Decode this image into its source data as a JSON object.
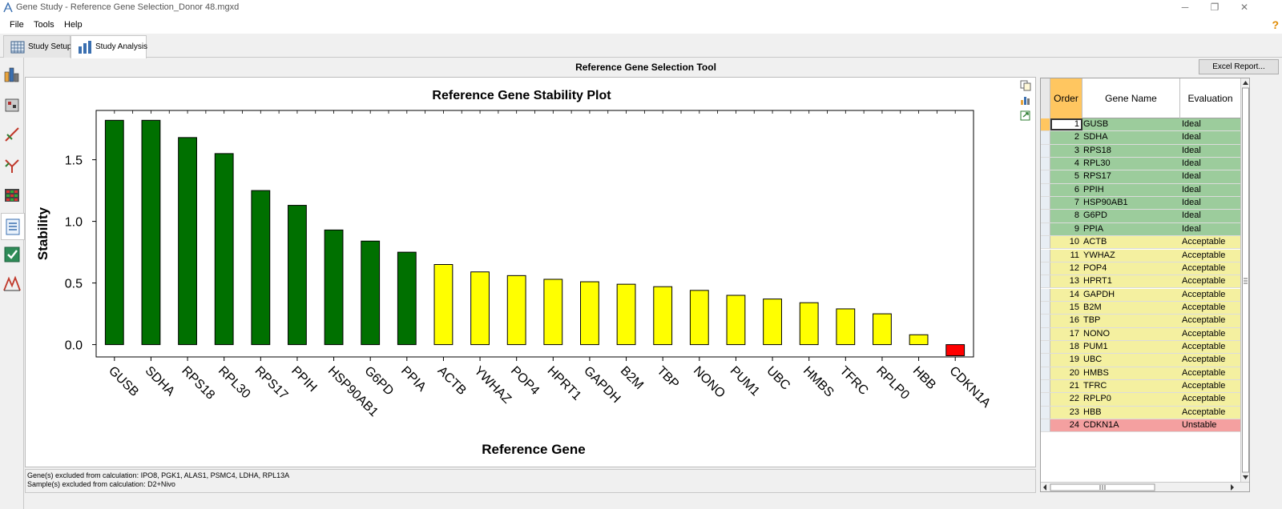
{
  "window": {
    "title": "Gene Study - Reference Gene Selection_Donor 48.mgxd",
    "minimize": "─",
    "restore": "❐",
    "close": "✕"
  },
  "menu": {
    "file": "File",
    "tools": "Tools",
    "help": "Help",
    "help_icon": "?"
  },
  "tabs": [
    {
      "label": "Study Setup",
      "icon": "grid-setup-icon"
    },
    {
      "label": "Study Analysis",
      "icon": "bar-chart-icon"
    }
  ],
  "sidebar": {
    "icons": [
      "bar-chart-icon",
      "flask-icon",
      "syringe-icon",
      "branch-icon",
      "heatmap-icon",
      "document-list-icon",
      "checklist-icon",
      "peaks-icon"
    ]
  },
  "tool": {
    "title": "Reference Gene Selection Tool",
    "excel_button": "Excel Report..."
  },
  "chart_tools": [
    "copy-icon",
    "chart-settings-icon",
    "export-icon"
  ],
  "chart_data": {
    "type": "bar",
    "title": "Reference Gene Stability Plot",
    "xlabel": "Reference Gene",
    "ylabel": "Stability",
    "ylim": [
      -0.1,
      1.9
    ],
    "yticks": [
      "0.0",
      "0.5",
      "1.0",
      "1.5"
    ],
    "ytick_values": [
      0,
      0.5,
      1.0,
      1.5
    ],
    "categories": [
      "GUSB",
      "SDHA",
      "RPS18",
      "RPL30",
      "RPS17",
      "PPIH",
      "HSP90AB1",
      "G6PD",
      "PPIA",
      "ACTB",
      "YWHAZ",
      "POP4",
      "HPRT1",
      "GAPDH",
      "B2M",
      "TBP",
      "NONO",
      "PUM1",
      "UBC",
      "HMBS",
      "TFRC",
      "RPLP0",
      "HBB",
      "CDKN1A"
    ],
    "values": [
      1.82,
      1.82,
      1.68,
      1.55,
      1.25,
      1.13,
      0.93,
      0.84,
      0.75,
      0.65,
      0.59,
      0.56,
      0.53,
      0.51,
      0.49,
      0.47,
      0.44,
      0.4,
      0.37,
      0.34,
      0.29,
      0.25,
      0.08,
      -0.09
    ],
    "colors": {
      "ideal": "#007000",
      "acceptable": "#ffff00",
      "unstable": "#ff0000"
    },
    "evaluation": [
      "ideal",
      "ideal",
      "ideal",
      "ideal",
      "ideal",
      "ideal",
      "ideal",
      "ideal",
      "ideal",
      "acceptable",
      "acceptable",
      "acceptable",
      "acceptable",
      "acceptable",
      "acceptable",
      "acceptable",
      "acceptable",
      "acceptable",
      "acceptable",
      "acceptable",
      "acceptable",
      "acceptable",
      "acceptable",
      "unstable"
    ]
  },
  "notes": {
    "genes_excluded": "Gene(s) excluded from calculation: IPO8, PGK1, ALAS1, PSMC4, LDHA, RPL13A",
    "samples_excluded": "Sample(s) excluded from calculation: D2+Nivo"
  },
  "grid": {
    "headers": {
      "order": "Order",
      "name": "Gene Name",
      "evaluation": "Evaluation"
    },
    "row_colors": {
      "Ideal": "#9ccc9c",
      "Acceptable": "#f4f0a0",
      "Unstable": "#f4a0a0"
    },
    "rows": [
      {
        "order": "1",
        "name": "GUSB",
        "evaluation": "Ideal"
      },
      {
        "order": "2",
        "name": "SDHA",
        "evaluation": "Ideal"
      },
      {
        "order": "3",
        "name": "RPS18",
        "evaluation": "Ideal"
      },
      {
        "order": "4",
        "name": "RPL30",
        "evaluation": "Ideal"
      },
      {
        "order": "5",
        "name": "RPS17",
        "evaluation": "Ideal"
      },
      {
        "order": "6",
        "name": "PPIH",
        "evaluation": "Ideal"
      },
      {
        "order": "7",
        "name": "HSP90AB1",
        "evaluation": "Ideal"
      },
      {
        "order": "8",
        "name": "G6PD",
        "evaluation": "Ideal"
      },
      {
        "order": "9",
        "name": "PPIA",
        "evaluation": "Ideal"
      },
      {
        "order": "10",
        "name": "ACTB",
        "evaluation": "Acceptable"
      },
      {
        "order": "11",
        "name": "YWHAZ",
        "evaluation": "Acceptable"
      },
      {
        "order": "12",
        "name": "POP4",
        "evaluation": "Acceptable"
      },
      {
        "order": "13",
        "name": "HPRT1",
        "evaluation": "Acceptable"
      },
      {
        "order": "14",
        "name": "GAPDH",
        "evaluation": "Acceptable"
      },
      {
        "order": "15",
        "name": "B2M",
        "evaluation": "Acceptable"
      },
      {
        "order": "16",
        "name": "TBP",
        "evaluation": "Acceptable"
      },
      {
        "order": "17",
        "name": "NONO",
        "evaluation": "Acceptable"
      },
      {
        "order": "18",
        "name": "PUM1",
        "evaluation": "Acceptable"
      },
      {
        "order": "19",
        "name": "UBC",
        "evaluation": "Acceptable"
      },
      {
        "order": "20",
        "name": "HMBS",
        "evaluation": "Acceptable"
      },
      {
        "order": "21",
        "name": "TFRC",
        "evaluation": "Acceptable"
      },
      {
        "order": "22",
        "name": "RPLP0",
        "evaluation": "Acceptable"
      },
      {
        "order": "23",
        "name": "HBB",
        "evaluation": "Acceptable"
      },
      {
        "order": "24",
        "name": "CDKN1A",
        "evaluation": "Unstable"
      }
    ]
  }
}
